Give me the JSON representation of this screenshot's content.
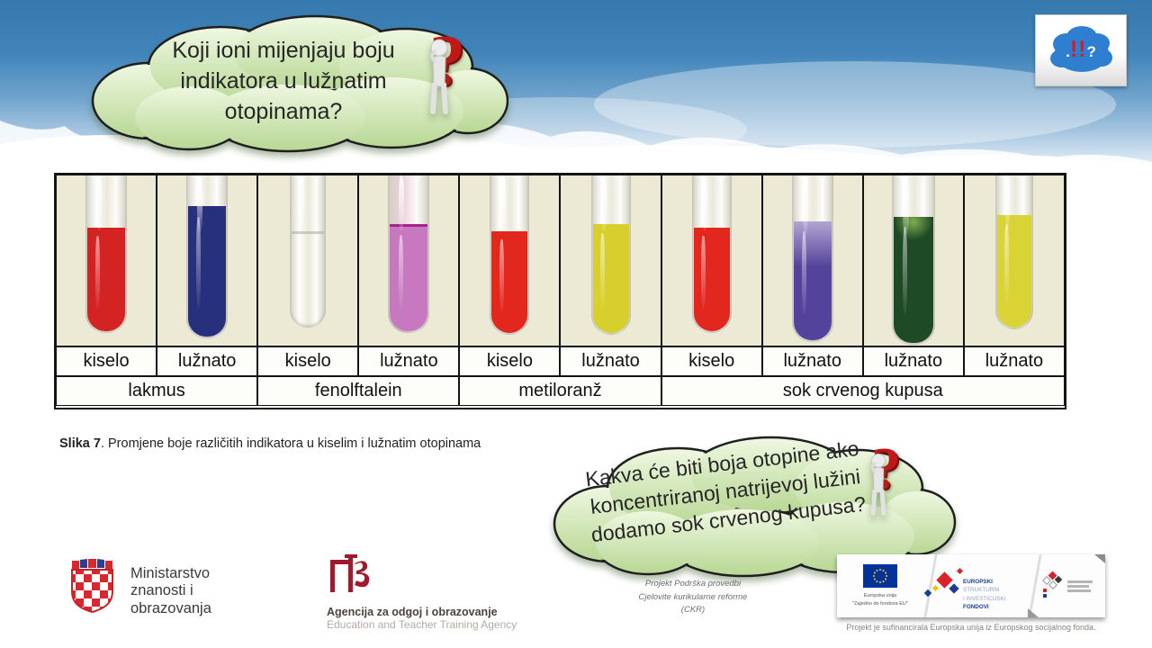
{
  "bubble1": {
    "text": "Koji ioni mijenjaju boju indikatora u lužnatim otopinama?"
  },
  "bubble2": {
    "text": "Kakva će biti boja otopine ako koncentriranoj natrijevoj lužini dodamo sok crvenog kupusa?"
  },
  "brand_logo": {
    "dot": ".",
    "bangs": "!!",
    "question": "?"
  },
  "figure": {
    "caption_label": "Slika 7",
    "caption_rest": ". Promjene boje različitih indikatora u kiselim i lužnatim otopinama",
    "columns": [
      {
        "condition": "kiselo",
        "indicator": "lakmus",
        "color": "#d32322"
      },
      {
        "condition": "lužnato",
        "indicator": "lakmus",
        "color": "#27307c"
      },
      {
        "condition": "kiselo",
        "indicator": "fenolftalein",
        "color": "rgba(232,234,214,0.55)",
        "colorless": true
      },
      {
        "condition": "lužnato",
        "indicator": "fenolftalein",
        "color": "#c878be",
        "meniscus_color": "#a2258e",
        "tint": "rgba(233,182,224,0.5)"
      },
      {
        "condition": "kiselo",
        "indicator": "metiloranž",
        "color": "#e2271f"
      },
      {
        "condition": "lužnato",
        "indicator": "metiloranž",
        "color": "#d7cf2b"
      },
      {
        "condition": "kiselo",
        "indicator": "sok crvenog kupusa",
        "color": "#e2271f"
      },
      {
        "condition": "lužnato",
        "indicator": "sok crvenog kupusa",
        "color": "#54439a",
        "color_top": "#b3a4d4"
      },
      {
        "condition": "lužnato",
        "indicator": "sok crvenog kupusa",
        "color": "#1f4a26",
        "blob_color": "#7fae4e"
      },
      {
        "condition": "lužnato",
        "indicator": "sok crvenog kupusa",
        "color": "#d9d335"
      }
    ],
    "groups": [
      {
        "label": "lakmus",
        "span": 2
      },
      {
        "label": "fenolftalein",
        "span": 2
      },
      {
        "label": "metiloranž",
        "span": 2
      },
      {
        "label": "sok crvenog kupusa",
        "span": 4
      }
    ]
  },
  "footer": {
    "mzo": {
      "lines": [
        "Ministarstvo",
        "znanosti i",
        "obrazovanja"
      ]
    },
    "azoo": {
      "line1": "Agencija za odgoj i obrazovanje",
      "line2": "Education and Teacher Training Agency"
    },
    "ckr": {
      "lines": [
        "Projekt Podrška provedbi",
        "Cjelovite kurikularne reforme",
        "(CKR)"
      ]
    },
    "eu": {
      "flag_caption1": "Europska unija",
      "flag_caption2": "\"Zajedno do fondova EU\"",
      "esif1_bold": "EUROPSKI",
      "esif1_rest": " STRUKTURNI",
      "esif2_rest": "I INVESTICIJSKI ",
      "esif2_bold": "FONDOVI",
      "bottom_caption": "Projekt je sufinancirala Europska unija iz Europskog socijalnog fonda."
    }
  },
  "colors": {
    "cloud_fill_top": "#eef7e0",
    "cloud_fill_bottom": "#bedc9c",
    "sky_top": "#3579ae",
    "eu_blue": "#003399",
    "accent_red": "#c01818"
  }
}
